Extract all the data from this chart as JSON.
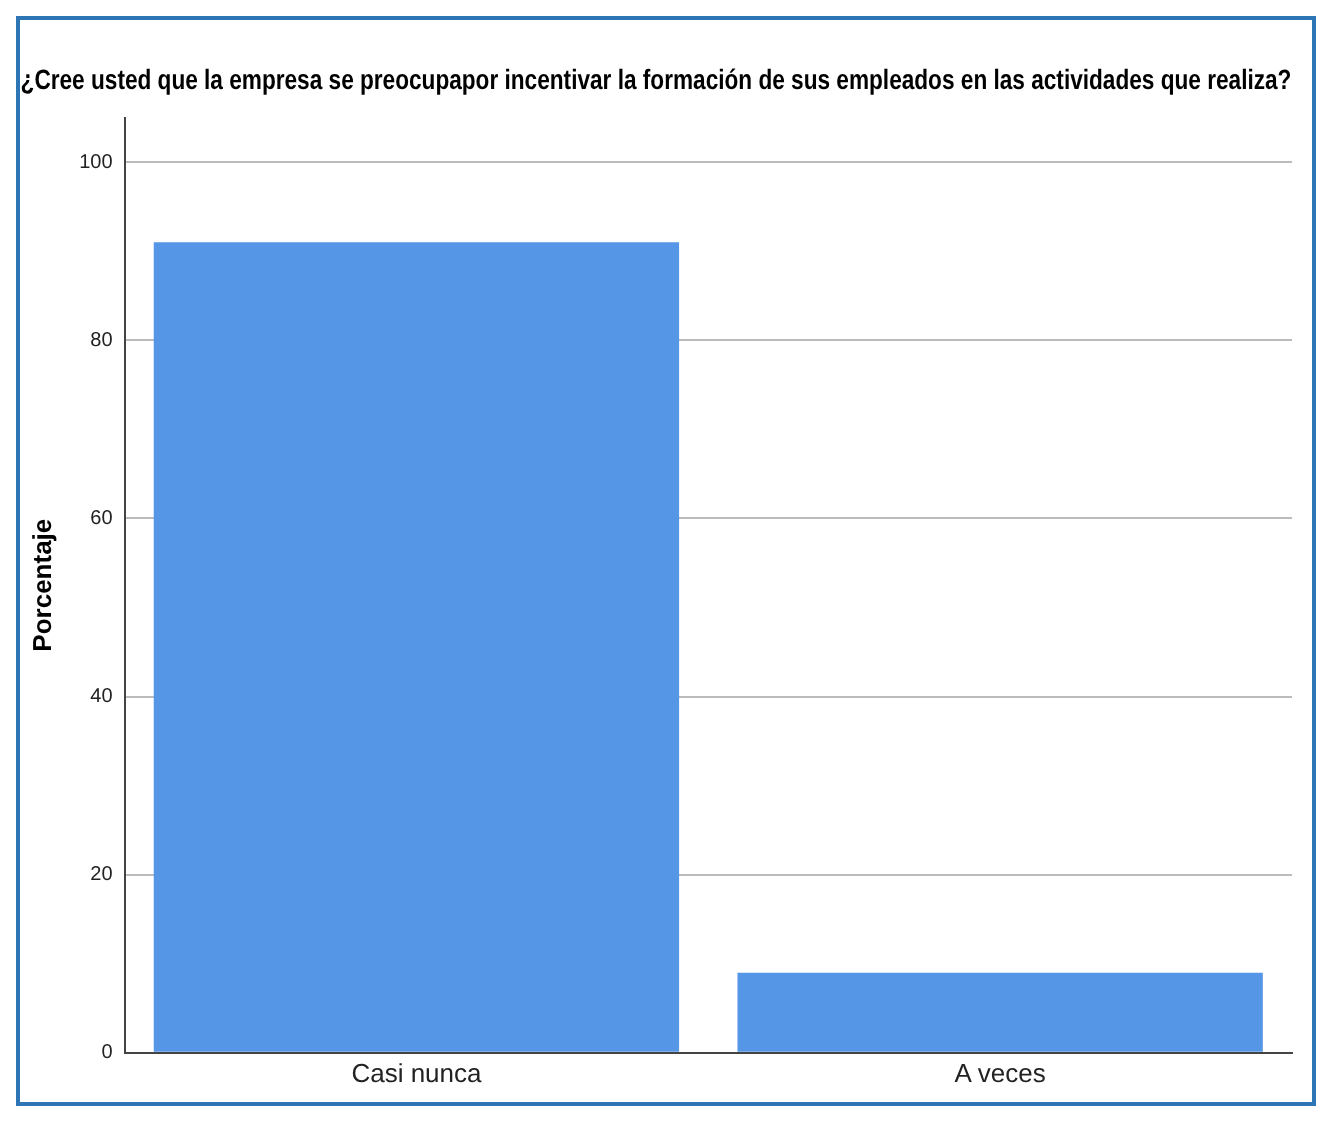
{
  "chart_data": {
    "type": "bar",
    "title": "¿Cree usted que la empresa se preocupapor incentivar la formación de sus empleados en las actividades que realiza?",
    "ylabel": "Porcentaje",
    "categories": [
      "Casi nunca",
      "A veces"
    ],
    "values": [
      91,
      9
    ],
    "color": "#5596e6",
    "ylim": [
      0,
      105
    ],
    "yticks": [
      0,
      20,
      40,
      60,
      80,
      100
    ],
    "grid": "y"
  }
}
